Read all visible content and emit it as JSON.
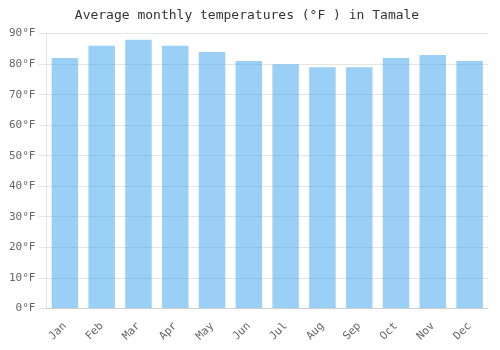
{
  "chart_data": {
    "type": "bar",
    "title": "Average monthly temperatures (°F ) in Tamale",
    "categories": [
      "Jan",
      "Feb",
      "Mar",
      "Apr",
      "May",
      "Jun",
      "Jul",
      "Aug",
      "Sep",
      "Oct",
      "Nov",
      "Dec"
    ],
    "values": [
      82,
      86,
      88,
      86,
      84,
      81,
      80,
      79,
      79,
      82,
      83,
      81
    ],
    "ylim": [
      0,
      90
    ],
    "yticks": [
      {
        "value": 0,
        "label": "0°F"
      },
      {
        "value": 10,
        "label": "10°F"
      },
      {
        "value": 20,
        "label": "20°F"
      },
      {
        "value": 30,
        "label": "30°F"
      },
      {
        "value": 40,
        "label": "40°F"
      },
      {
        "value": 50,
        "label": "50°F"
      },
      {
        "value": 60,
        "label": "60°F"
      },
      {
        "value": 70,
        "label": "70°F"
      },
      {
        "value": 80,
        "label": "80°F"
      },
      {
        "value": 90,
        "label": "90°F"
      }
    ],
    "grid": true
  }
}
